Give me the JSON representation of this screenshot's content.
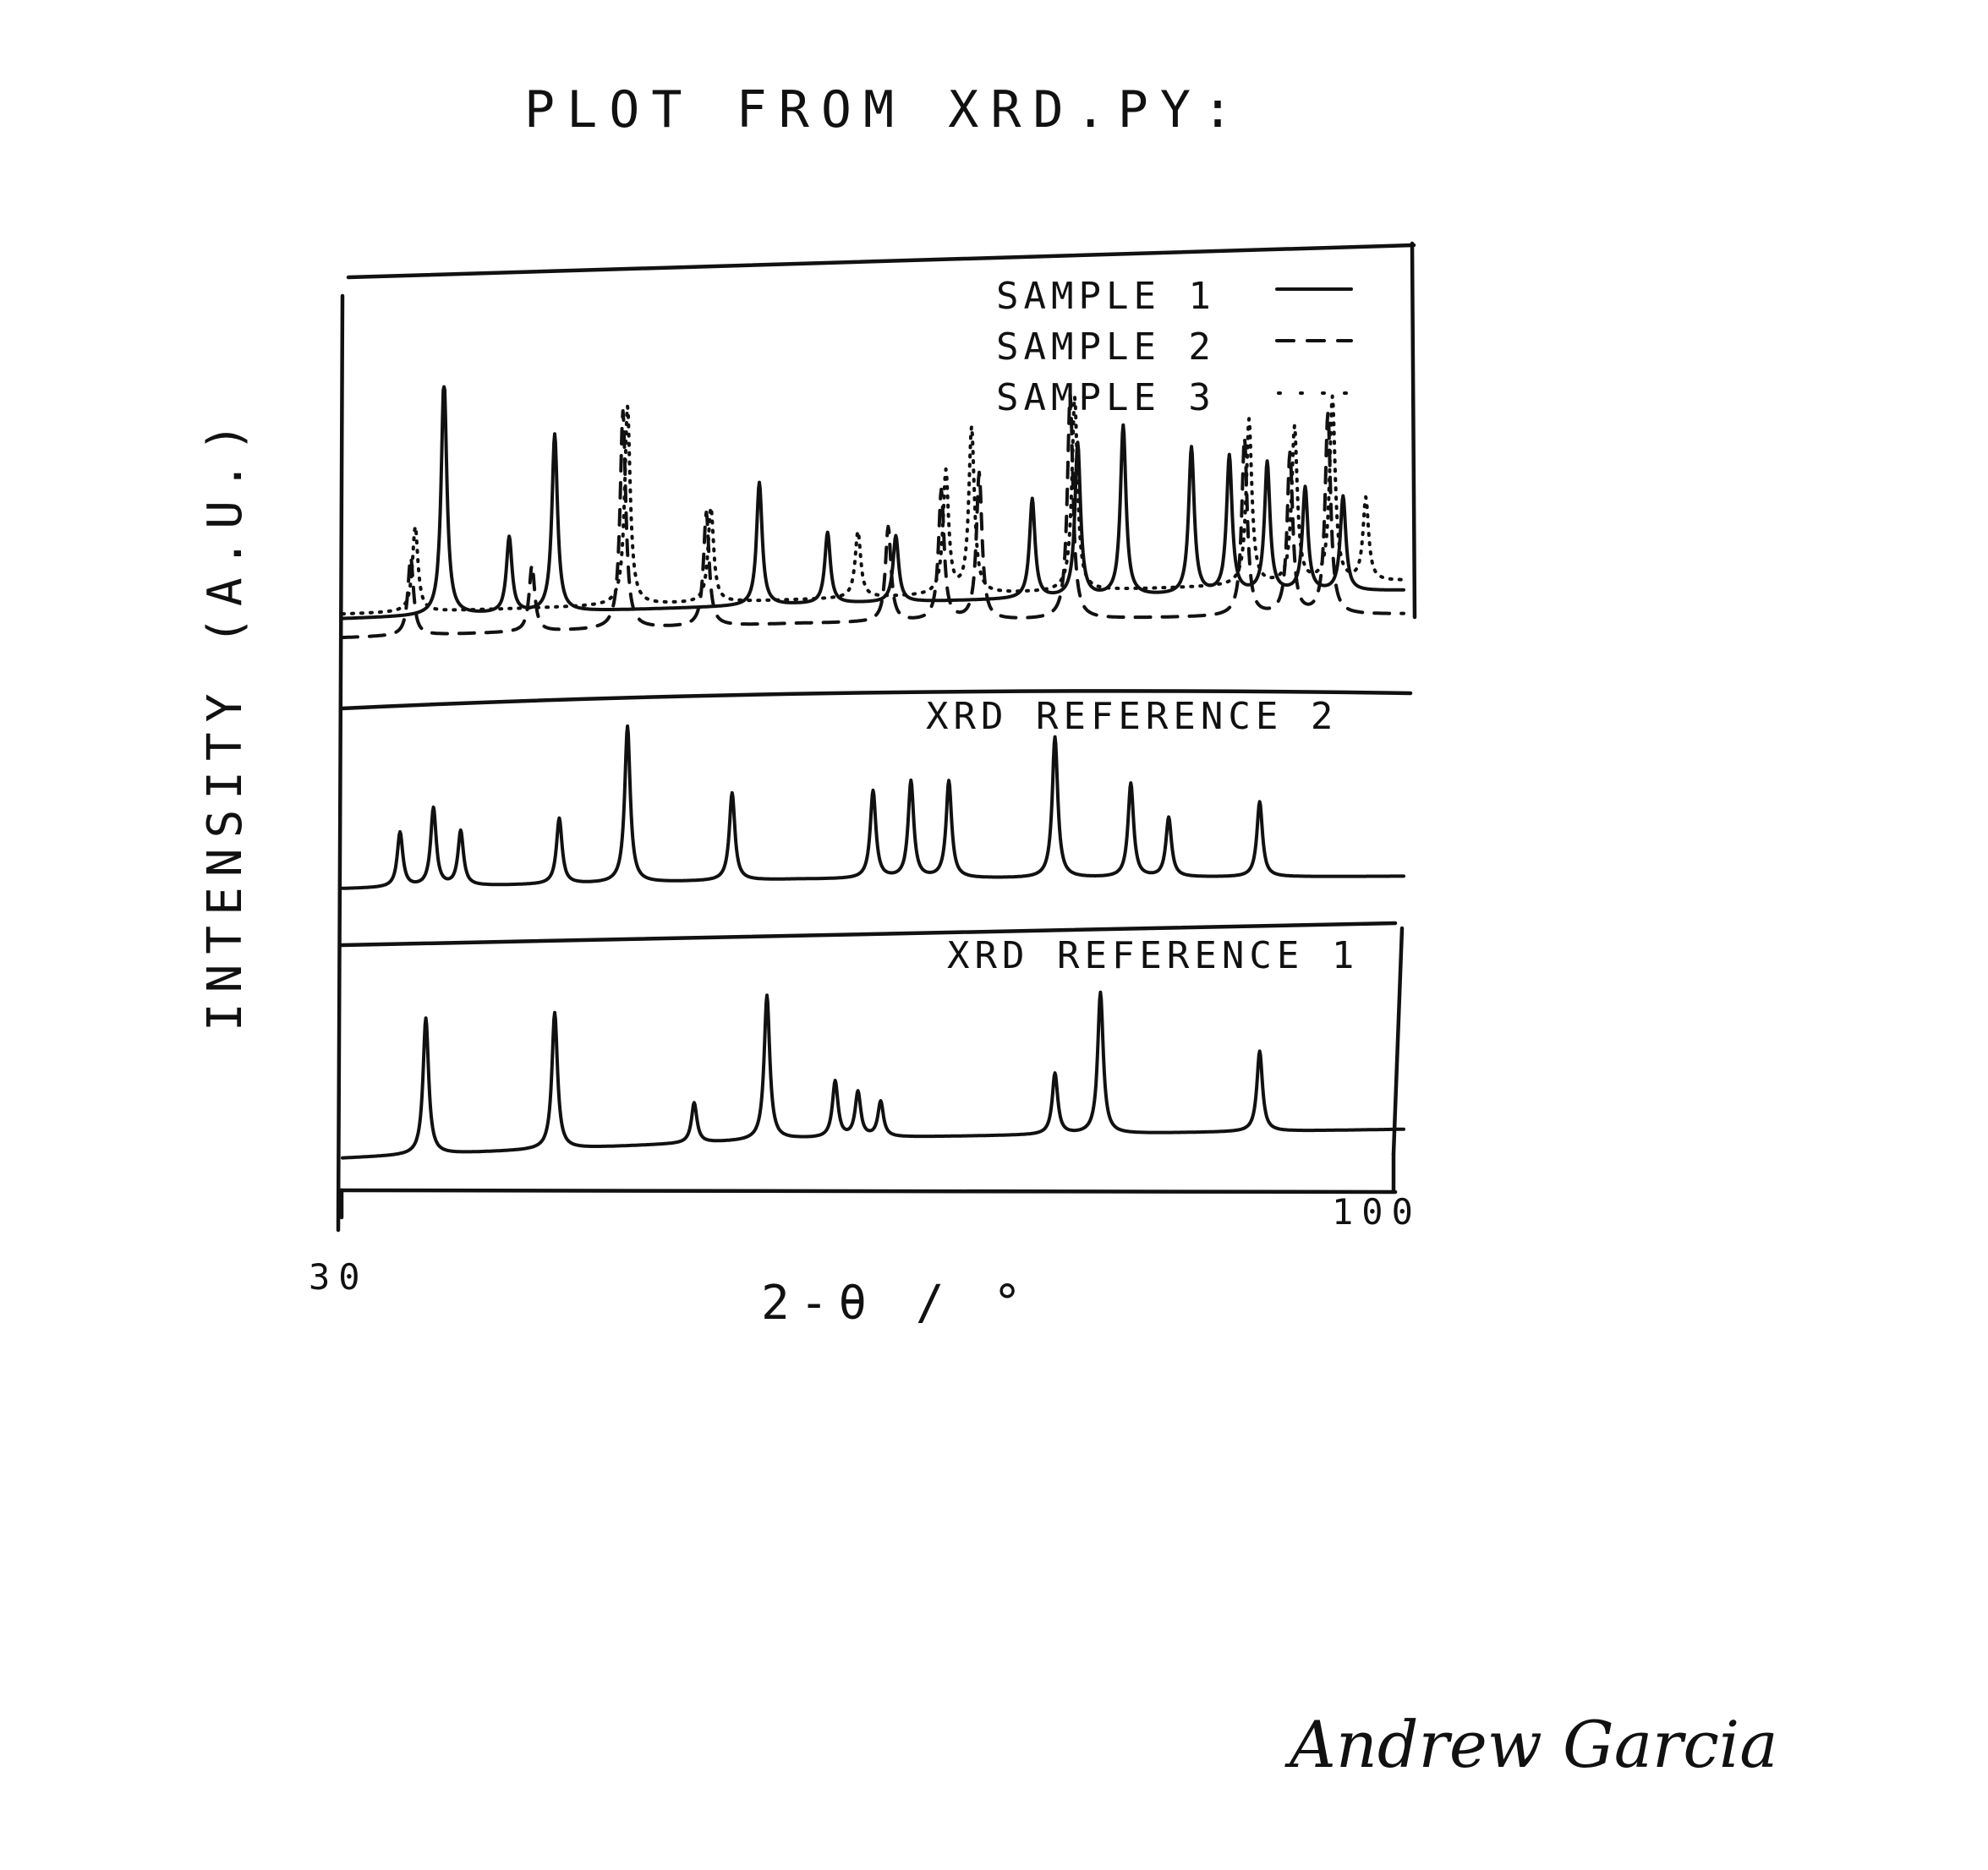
{
  "page": {
    "title": "PLOT FROM XRD.PY:",
    "signature": "Andrew Garcia"
  },
  "chart_data": {
    "type": "line",
    "xlabel": "2-θ / °",
    "ylabel": "INTENSITY (A.U.)",
    "xlim": [
      30,
      100
    ],
    "x_tick_labels": [
      "30",
      "100"
    ],
    "ink_color": "#111111",
    "grid": false,
    "legend": {
      "placement": "top-right",
      "entries": [
        {
          "label": "SAMPLE 1",
          "style": "solid"
        },
        {
          "label": "SAMPLE 2",
          "style": "dashed"
        },
        {
          "label": "SAMPLE 3",
          "style": "dotted"
        }
      ]
    },
    "panels": [
      {
        "name": "samples",
        "label": "",
        "series": [
          {
            "name": "SAMPLE 1",
            "style": "solid",
            "baseline": [
              [
                30,
                0.1
              ],
              [
                60,
                0.16
              ],
              [
                100,
                0.22
              ]
            ],
            "peaks": [
              {
                "x": 36.7,
                "y": 1.0
              },
              {
                "x": 41.0,
                "y": 0.32
              },
              {
                "x": 44.0,
                "y": 0.75
              },
              {
                "x": 57.5,
                "y": 0.52
              },
              {
                "x": 62.0,
                "y": 0.3
              },
              {
                "x": 66.5,
                "y": 0.28
              },
              {
                "x": 75.5,
                "y": 0.42
              },
              {
                "x": 78.5,
                "y": 0.65
              },
              {
                "x": 81.5,
                "y": 0.72
              },
              {
                "x": 86.0,
                "y": 0.62
              },
              {
                "x": 88.5,
                "y": 0.58
              },
              {
                "x": 91.0,
                "y": 0.55
              },
              {
                "x": 93.5,
                "y": 0.44
              },
              {
                "x": 96.0,
                "y": 0.4
              }
            ]
          },
          {
            "name": "SAMPLE 2",
            "style": "dashed",
            "baseline": [
              [
                30,
                0.02
              ],
              [
                60,
                0.08
              ],
              [
                100,
                0.12
              ]
            ],
            "peaks": [
              {
                "x": 34.5,
                "y": 0.33
              },
              {
                "x": 42.5,
                "y": 0.28
              },
              {
                "x": 48.5,
                "y": 0.92
              },
              {
                "x": 54.0,
                "y": 0.48
              },
              {
                "x": 66.0,
                "y": 0.4
              },
              {
                "x": 69.5,
                "y": 0.55
              },
              {
                "x": 72.0,
                "y": 0.62
              },
              {
                "x": 78.0,
                "y": 0.95
              },
              {
                "x": 89.5,
                "y": 0.75
              },
              {
                "x": 92.5,
                "y": 0.68
              },
              {
                "x": 95.0,
                "y": 0.85
              }
            ]
          },
          {
            "name": "SAMPLE 3",
            "style": "dotted",
            "baseline": [
              [
                30,
                0.12
              ],
              [
                60,
                0.18
              ],
              [
                100,
                0.26
              ]
            ],
            "peaks": [
              {
                "x": 34.8,
                "y": 0.36
              },
              {
                "x": 48.8,
                "y": 0.84
              },
              {
                "x": 54.3,
                "y": 0.4
              },
              {
                "x": 64.0,
                "y": 0.28
              },
              {
                "x": 69.8,
                "y": 0.52
              },
              {
                "x": 71.5,
                "y": 0.7
              },
              {
                "x": 78.3,
                "y": 0.82
              },
              {
                "x": 89.8,
                "y": 0.7
              },
              {
                "x": 92.8,
                "y": 0.66
              },
              {
                "x": 95.3,
                "y": 0.78
              },
              {
                "x": 97.5,
                "y": 0.35
              }
            ]
          }
        ]
      },
      {
        "name": "reference-2",
        "label": "XRD REFERENCE 2",
        "series": [
          {
            "name": "XRD REFERENCE 2",
            "style": "solid",
            "baseline": [
              [
                30,
                0.02
              ],
              [
                60,
                0.08
              ],
              [
                100,
                0.1
              ]
            ],
            "peaks": [
              {
                "x": 33.8,
                "y": 0.35
              },
              {
                "x": 36.0,
                "y": 0.5
              },
              {
                "x": 37.8,
                "y": 0.35
              },
              {
                "x": 44.3,
                "y": 0.42
              },
              {
                "x": 48.8,
                "y": 1.0
              },
              {
                "x": 55.7,
                "y": 0.56
              },
              {
                "x": 65.0,
                "y": 0.56
              },
              {
                "x": 67.5,
                "y": 0.62
              },
              {
                "x": 70.0,
                "y": 0.62
              },
              {
                "x": 77.0,
                "y": 0.9
              },
              {
                "x": 82.0,
                "y": 0.6
              },
              {
                "x": 84.5,
                "y": 0.38
              },
              {
                "x": 90.5,
                "y": 0.48
              }
            ]
          }
        ]
      },
      {
        "name": "reference-1",
        "label": "XRD REFERENCE 1",
        "series": [
          {
            "name": "XRD REFERENCE 1",
            "style": "solid",
            "baseline": [
              [
                30,
                0.0
              ],
              [
                60,
                0.12
              ],
              [
                100,
                0.18
              ]
            ],
            "peaks": [
              {
                "x": 35.5,
                "y": 0.85
              },
              {
                "x": 44.0,
                "y": 0.85
              },
              {
                "x": 53.2,
                "y": 0.25
              },
              {
                "x": 58.0,
                "y": 0.9
              },
              {
                "x": 62.5,
                "y": 0.35
              },
              {
                "x": 64.0,
                "y": 0.28
              },
              {
                "x": 65.5,
                "y": 0.22
              },
              {
                "x": 77.0,
                "y": 0.38
              },
              {
                "x": 80.0,
                "y": 0.88
              },
              {
                "x": 90.5,
                "y": 0.5
              }
            ]
          }
        ]
      }
    ]
  }
}
